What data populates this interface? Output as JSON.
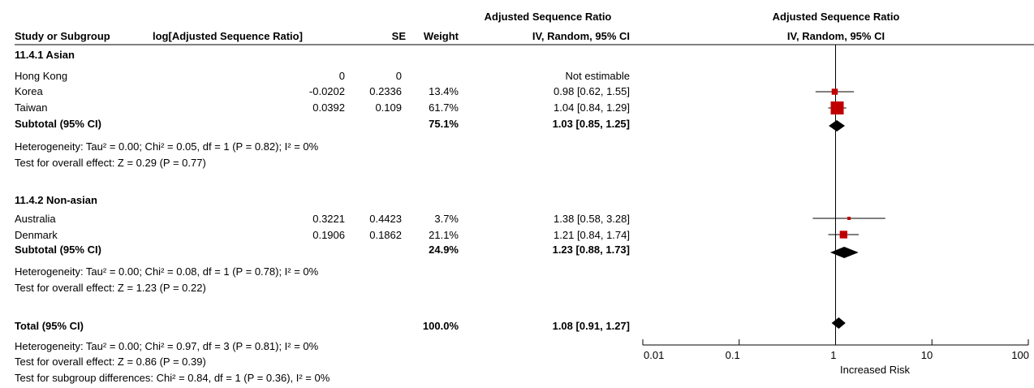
{
  "header": {
    "col_study": "Study or Subgroup",
    "col_est": "log[Adjusted Sequence Ratio]",
    "col_se": "SE",
    "col_weight": "Weight",
    "col_ci_title": "Adjusted Sequence Ratio",
    "col_ci_sub": "IV, Random, 95% CI",
    "plot_title": "Adjusted Sequence Ratio",
    "plot_sub": "IV, Random, 95% CI"
  },
  "groups": [
    {
      "title": "11.4.1 Asian",
      "studies": [
        {
          "name": "Hong Kong",
          "est": "0",
          "se": "0",
          "weight": "",
          "ci": "Not estimable"
        },
        {
          "name": "Korea",
          "est": "-0.0202",
          "se": "0.2336",
          "weight": "13.4%",
          "ci": "0.98 [0.62, 1.55]"
        },
        {
          "name": "Taiwan",
          "est": "0.0392",
          "se": "0.109",
          "weight": "61.7%",
          "ci": "1.04 [0.84, 1.29]"
        }
      ],
      "subtotal": {
        "label": "Subtotal (95% CI)",
        "weight": "75.1%",
        "ci": "1.03 [0.85, 1.25]"
      },
      "heterogeneity": "Heterogeneity: Tau² = 0.00; Chi² = 0.05, df = 1 (P = 0.82); I² = 0%",
      "overall": "Test for overall effect: Z = 0.29 (P = 0.77)"
    },
    {
      "title": "11.4.2 Non-asian",
      "studies": [
        {
          "name": "Australia",
          "est": "0.3221",
          "se": "0.4423",
          "weight": "3.7%",
          "ci": "1.38 [0.58, 3.28]"
        },
        {
          "name": "Denmark",
          "est": "0.1906",
          "se": "0.1862",
          "weight": "21.1%",
          "ci": "1.21 [0.84, 1.74]"
        }
      ],
      "subtotal": {
        "label": "Subtotal (95% CI)",
        "weight": "24.9%",
        "ci": "1.23 [0.88, 1.73]"
      },
      "heterogeneity": "Heterogeneity: Tau² = 0.00; Chi² = 0.08, df = 1 (P = 0.78); I² = 0%",
      "overall": "Test for overall effect: Z = 1.23 (P = 0.22)"
    }
  ],
  "total": {
    "label": "Total (95% CI)",
    "weight": "100.0%",
    "ci": "1.08 [0.91, 1.27]",
    "heterogeneity": "Heterogeneity: Tau² = 0.00; Chi² = 0.97, df = 3 (P = 0.81); I² = 0%",
    "overall": "Test for overall effect: Z = 0.86 (P = 0.39)",
    "subgroup": "Test for subgroup differences: Chi² = 0.84, df = 1 (P = 0.36), I² = 0%"
  },
  "axis": {
    "ticks": [
      "0.01",
      "0.1",
      "1",
      "10",
      "100"
    ],
    "label_right": "Increased Risk"
  },
  "colors": {
    "study_marker": "#c00000",
    "diamond": "#000000"
  },
  "chart_data": {
    "type": "forest",
    "scale": "log",
    "xlim": [
      0.01,
      100
    ],
    "reference": 1,
    "studies": [
      {
        "name": "Korea",
        "estimate": 0.98,
        "lower": 0.62,
        "upper": 1.55,
        "weight": 13.4
      },
      {
        "name": "Taiwan",
        "estimate": 1.04,
        "lower": 0.84,
        "upper": 1.29,
        "weight": 61.7
      },
      {
        "name": "Australia",
        "estimate": 1.38,
        "lower": 0.58,
        "upper": 3.28,
        "weight": 3.7
      },
      {
        "name": "Denmark",
        "estimate": 1.21,
        "lower": 0.84,
        "upper": 1.74,
        "weight": 21.1
      }
    ],
    "summaries": [
      {
        "name": "Subtotal 11.4.1 Asian",
        "estimate": 1.03,
        "lower": 0.85,
        "upper": 1.25
      },
      {
        "name": "Subtotal 11.4.2 Non-asian",
        "estimate": 1.23,
        "lower": 0.88,
        "upper": 1.73
      },
      {
        "name": "Total",
        "estimate": 1.08,
        "lower": 0.91,
        "upper": 1.27
      }
    ]
  }
}
